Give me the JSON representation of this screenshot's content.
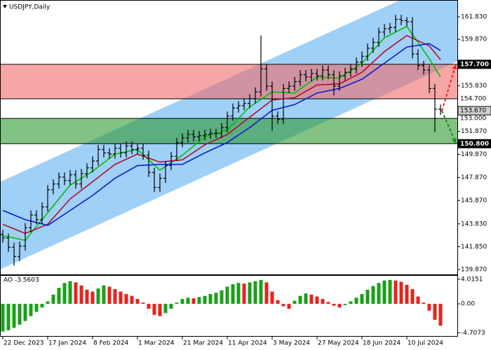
{
  "chart_data": [
    {
      "type": "candlestick",
      "title": "USDJPY,Daily",
      "categories": [
        "22 Dec 2023",
        null,
        null,
        null,
        null,
        null,
        null,
        null,
        "17 Jan 2024",
        null,
        null,
        null,
        null,
        null,
        null,
        null,
        "8 Feb 2024",
        null,
        null,
        null,
        null,
        null,
        null,
        null,
        "1 Mar 2024",
        null,
        null,
        null,
        null,
        null,
        null,
        null,
        "21 Mar 2024",
        null,
        null,
        null,
        null,
        null,
        null,
        null,
        "11 Apr 2024",
        null,
        null,
        null,
        null,
        null,
        null,
        null,
        "3 May 2024",
        null,
        null,
        null,
        null,
        null,
        null,
        null,
        "27 May 2024",
        null,
        null,
        null,
        null,
        null,
        null,
        null,
        "18 Jun 2024",
        null,
        null,
        null,
        null,
        null,
        null,
        null,
        "10 Jul 2024",
        null,
        null,
        null,
        null,
        null,
        null
      ],
      "open": [
        142.9,
        142.6,
        141.8,
        141.0,
        141.9,
        143.5,
        144.6,
        144.2,
        145.3,
        146.8,
        147.3,
        147.9,
        147.6,
        148.1,
        147.3,
        148.2,
        148.7,
        149.3,
        150.3,
        150.0,
        149.9,
        150.4,
        150.0,
        150.6,
        150.3,
        150.4,
        149.8,
        148.3,
        147.0,
        147.8,
        148.9,
        149.7,
        150.9,
        151.3,
        151.6,
        151.4,
        151.5,
        151.6,
        151.7,
        151.7,
        152.2,
        153.2,
        153.9,
        154.1,
        154.3,
        154.7,
        155.3,
        157.3,
        155.8,
        153.2,
        152.9,
        155.6,
        155.8,
        156.2,
        156.8,
        156.6,
        156.9,
        156.7,
        157.2,
        156.8,
        155.8,
        156.7,
        157.0,
        157.3,
        157.9,
        158.4,
        159.1,
        159.6,
        160.5,
        160.8,
        160.9,
        161.6,
        161.5,
        161.4,
        158.6,
        157.6,
        157.2,
        155.6,
        153.8
      ],
      "high": [
        143.3,
        143.0,
        142.2,
        142.3,
        143.9,
        145.0,
        145.0,
        145.7,
        147.2,
        147.7,
        148.3,
        148.3,
        148.5,
        148.5,
        148.6,
        149.1,
        149.7,
        150.7,
        150.7,
        150.4,
        150.8,
        150.8,
        151.0,
        151.0,
        150.8,
        150.8,
        150.2,
        148.7,
        148.2,
        149.3,
        150.1,
        151.3,
        151.7,
        152.0,
        152.0,
        151.9,
        152.0,
        152.1,
        152.1,
        152.6,
        153.6,
        154.3,
        154.5,
        154.7,
        155.1,
        155.7,
        160.2,
        157.7,
        156.2,
        153.6,
        156.0,
        156.2,
        156.6,
        157.2,
        157.2,
        157.3,
        157.3,
        157.6,
        157.6,
        157.2,
        157.1,
        157.4,
        157.7,
        158.3,
        158.8,
        159.5,
        160.0,
        160.9,
        161.2,
        161.3,
        162.0,
        162.0,
        161.8,
        161.8,
        159.0,
        158.0,
        157.6,
        156.0,
        154.2
      ],
      "low": [
        142.2,
        141.4,
        140.2,
        140.6,
        141.5,
        143.1,
        143.8,
        143.8,
        144.9,
        146.4,
        146.9,
        147.2,
        147.2,
        146.9,
        146.9,
        147.8,
        148.3,
        148.9,
        149.6,
        149.5,
        149.5,
        149.6,
        149.6,
        149.9,
        149.9,
        149.4,
        147.9,
        146.6,
        146.6,
        147.4,
        148.5,
        149.3,
        150.5,
        150.9,
        151.0,
        151.0,
        151.1,
        151.2,
        151.3,
        151.3,
        151.8,
        152.8,
        153.5,
        153.7,
        153.9,
        154.3,
        154.9,
        155.4,
        151.9,
        152.5,
        152.5,
        155.2,
        155.4,
        155.8,
        156.2,
        156.2,
        156.3,
        156.3,
        156.4,
        155.0,
        155.4,
        156.3,
        156.6,
        156.9,
        157.5,
        158.0,
        158.7,
        159.2,
        160.1,
        160.4,
        160.5,
        161.1,
        161.0,
        158.2,
        157.2,
        156.8,
        155.2,
        151.8,
        153.3
      ],
      "close": [
        142.6,
        141.8,
        141.0,
        141.9,
        143.5,
        144.6,
        144.2,
        145.3,
        146.8,
        147.3,
        147.9,
        147.6,
        148.1,
        147.3,
        148.2,
        148.7,
        149.3,
        150.3,
        150.0,
        149.9,
        150.4,
        150.0,
        150.6,
        150.3,
        150.4,
        149.8,
        148.3,
        147.0,
        147.8,
        148.9,
        149.7,
        150.9,
        151.3,
        151.6,
        151.4,
        151.5,
        151.6,
        151.7,
        151.7,
        152.2,
        153.2,
        153.9,
        154.1,
        154.3,
        154.7,
        155.3,
        157.3,
        155.8,
        153.2,
        152.9,
        155.6,
        155.8,
        156.2,
        156.8,
        156.6,
        156.9,
        156.7,
        157.2,
        156.8,
        155.8,
        156.7,
        157.0,
        157.3,
        157.9,
        158.4,
        159.1,
        159.6,
        160.5,
        160.8,
        160.9,
        161.6,
        161.5,
        161.4,
        158.6,
        157.6,
        157.2,
        155.6,
        153.8,
        153.67
      ],
      "bar_color": "#000000",
      "series": [
        {
          "color": "#00c000",
          "x": [
            0,
            4,
            8,
            12,
            16,
            20,
            24,
            28,
            32,
            36,
            40,
            44,
            48,
            52,
            56,
            60,
            64,
            68,
            72,
            76,
            78
          ],
          "values": [
            142.8,
            142.4,
            144.8,
            147.2,
            148.4,
            149.9,
            150.3,
            148.5,
            149.8,
            151.4,
            152.0,
            154.0,
            155.3,
            155.2,
            156.6,
            156.5,
            157.8,
            160.0,
            161.0,
            158.2,
            156.6
          ]
        },
        {
          "color": "#b0102a",
          "x": [
            0,
            4,
            8,
            12,
            16,
            20,
            24,
            28,
            32,
            36,
            40,
            44,
            48,
            52,
            56,
            60,
            64,
            68,
            72,
            76,
            78
          ],
          "values": [
            143.8,
            143.0,
            143.8,
            146.0,
            147.5,
            149.0,
            149.9,
            149.2,
            149.4,
            150.7,
            151.6,
            153.1,
            154.6,
            154.8,
            155.9,
            156.0,
            157.0,
            158.8,
            160.2,
            159.3,
            158.1
          ]
        },
        {
          "color": "#0a1ad0",
          "x": [
            0,
            4,
            8,
            12,
            16,
            20,
            24,
            28,
            32,
            36,
            40,
            44,
            48,
            52,
            56,
            60,
            64,
            68,
            72,
            76,
            78
          ],
          "values": [
            145.0,
            144.2,
            143.7,
            145.0,
            146.3,
            147.8,
            148.9,
            149.0,
            149.0,
            150.0,
            150.9,
            152.2,
            153.7,
            154.2,
            155.2,
            155.6,
            156.4,
            157.8,
            159.2,
            159.5,
            158.9
          ]
        }
      ],
      "channel": {
        "upper": [
          147.47,
          165.54
        ],
        "lower": [
          139.87,
          157.94
        ],
        "color": "#9fd0f7"
      },
      "zones": [
        {
          "top": {
            "value": 157.7,
            "label": "157.700",
            "highlight": true
          },
          "bottom": {
            "value": 154.7,
            "label": "154.700",
            "highlight": false
          },
          "color": "#f26b6b",
          "arrow_to": "top",
          "arrow_color": "#e8231c"
        },
        {
          "top": {
            "value": 153.0,
            "label": "153.000",
            "highlight": false
          },
          "bottom": {
            "value": 150.8,
            "label": "150.800",
            "highlight": true
          },
          "color": "#2e9a2e",
          "arrow_to": "bottom",
          "arrow_color": "#1c8a1c"
        }
      ],
      "last_price": {
        "value": 153.67,
        "label": "153.670"
      },
      "ylim": [
        139.44,
        163.29
      ],
      "yticks": [
        {
          "value": 161.83,
          "label": "161.830"
        },
        {
          "value": 159.87,
          "label": "159.870"
        },
        {
          "value": 155.83,
          "label": "155.830"
        },
        {
          "value": 151.87,
          "label": "151.870"
        },
        {
          "value": 149.87,
          "label": "149.870"
        },
        {
          "value": 147.87,
          "label": "147.870"
        },
        {
          "value": 145.87,
          "label": "145.870"
        },
        {
          "value": 143.83,
          "label": "143.830"
        },
        {
          "value": 141.85,
          "label": "141.850"
        },
        {
          "value": 139.87,
          "label": "139.870"
        }
      ]
    },
    {
      "type": "bar",
      "title": "AO -3.5603",
      "values": [
        -4.5,
        -4.3,
        -3.9,
        -3.4,
        -2.8,
        -2.0,
        -1.3,
        -0.6,
        0.4,
        1.5,
        2.6,
        3.4,
        3.7,
        3.5,
        3.0,
        2.3,
        2.0,
        2.5,
        3.0,
        2.8,
        2.4,
        2.0,
        1.6,
        1.3,
        0.8,
        0.2,
        -0.8,
        -1.8,
        -2.0,
        -1.5,
        -0.8,
        0.2,
        0.8,
        1.0,
        0.9,
        1.1,
        1.3,
        1.6,
        1.8,
        2.2,
        2.8,
        3.2,
        3.4,
        3.3,
        3.5,
        3.7,
        3.9,
        3.5,
        2.0,
        0.6,
        -0.4,
        -0.8,
        0.5,
        1.3,
        1.7,
        1.5,
        1.2,
        0.8,
        0.3,
        -0.3,
        -0.6,
        -0.2,
        0.4,
        1.0,
        1.6,
        2.3,
        2.9,
        3.4,
        3.8,
        3.9,
        3.8,
        3.6,
        3.1,
        2.4,
        1.2,
        0.2,
        -1.1,
        -2.6,
        -3.5603
      ],
      "up_color": "#1aa01a",
      "down_color": "#e8231c",
      "ylim": [
        -5.24,
        4.57
      ],
      "yticks": [
        4.0151,
        {
          "value": 0,
          "label": "0.00"
        },
        -4.7073
      ]
    }
  ]
}
